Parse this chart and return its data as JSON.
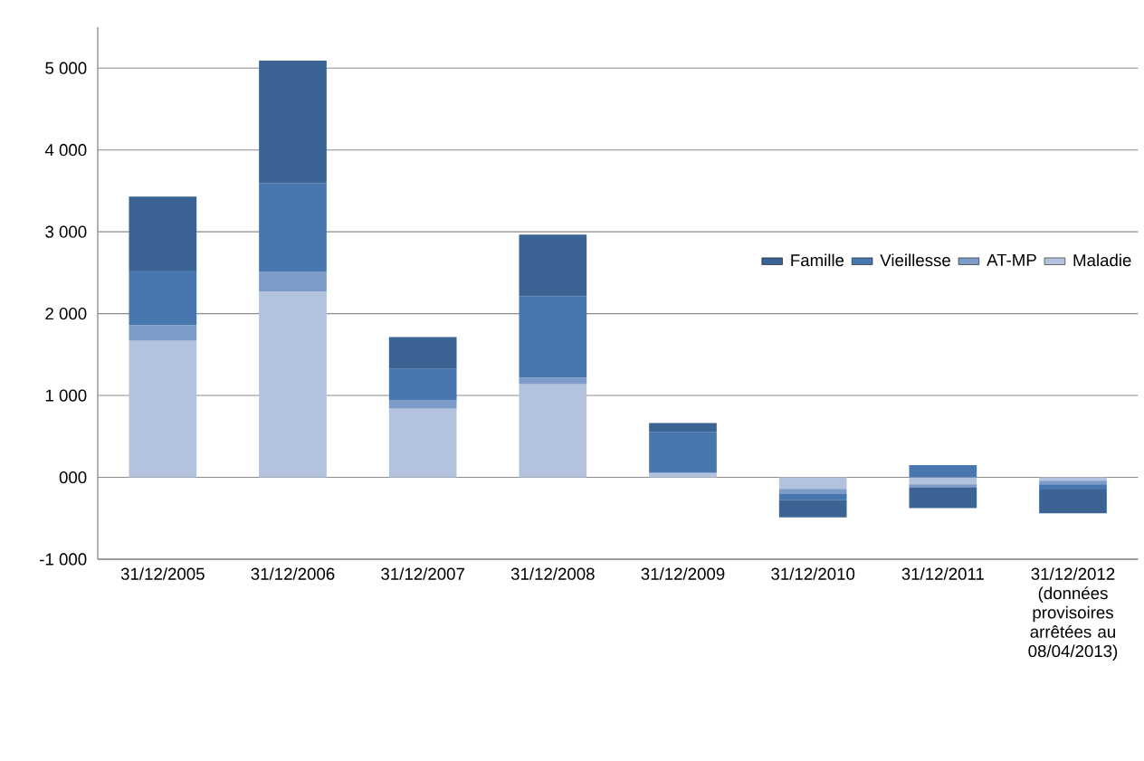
{
  "chart_data": {
    "type": "bar",
    "stacked": true,
    "categories": [
      "31/12/2005",
      "31/12/2006",
      "31/12/2007",
      "31/12/2008",
      "31/12/2009",
      "31/12/2010",
      "31/12/2011",
      "31/12/2012 (données provisoires arrêtées au 08/04/2013)"
    ],
    "series": [
      {
        "name": "Maladie",
        "color": "#b3c3dd",
        "values": [
          1670,
          2270,
          840,
          1140,
          55,
          -140,
          -85,
          -40
        ]
      },
      {
        "name": "AT-MP",
        "color": "#7d9bc8",
        "values": [
          190,
          245,
          100,
          80,
          0,
          -65,
          -35,
          -45
        ]
      },
      {
        "name": "Vieillesse",
        "color": "#4876ae",
        "values": [
          665,
          1080,
          385,
          995,
          500,
          -75,
          150,
          -65
        ]
      },
      {
        "name": "Famille",
        "color": "#3b6494",
        "values": [
          905,
          1495,
          390,
          750,
          110,
          -210,
          -255,
          -290
        ]
      }
    ],
    "ylim": [
      -1000,
      5500
    ],
    "yticks": [
      {
        "value": -1000,
        "label": "-1 000"
      },
      {
        "value": 0,
        "label": "000"
      },
      {
        "value": 1000,
        "label": "1 000"
      },
      {
        "value": 2000,
        "label": "2 000"
      },
      {
        "value": 3000,
        "label": "3 000"
      },
      {
        "value": 4000,
        "label": "4 000"
      },
      {
        "value": 5000,
        "label": "5 000"
      }
    ],
    "grid": "y",
    "legend": "right"
  }
}
